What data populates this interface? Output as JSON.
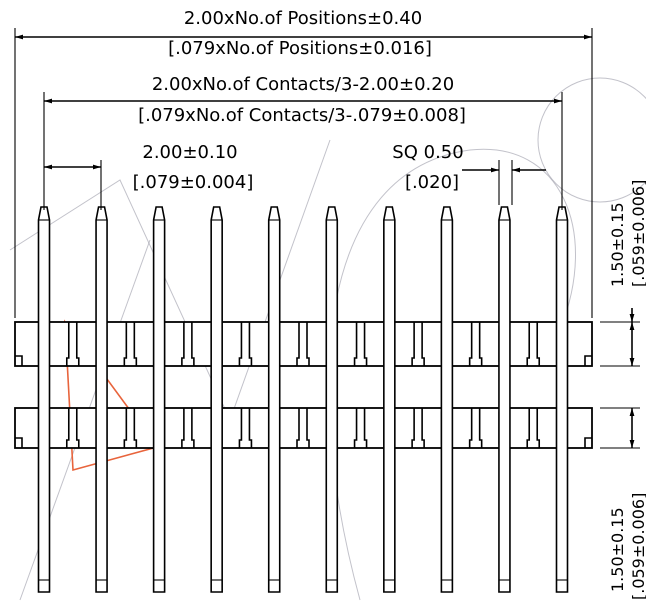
{
  "drawing": {
    "pin_count": 10,
    "dimensions": {
      "overall_mm": "2.00xNo.of Positions±0.40",
      "overall_in": "[.079xNo.of Positions±0.016]",
      "contacts_mm": "2.00xNo.of Contacts/3-2.00±0.20",
      "contacts_in": "[.079xNo.of Contacts/3-.079±0.008]",
      "pitch_mm": "2.00±0.10",
      "pitch_in": "[.079±0.004]",
      "pin_sq_mm": "SQ 0.50",
      "pin_sq_in": "[.020]",
      "top_length_mm": "1.50±0.15",
      "top_length_in": "[.059±0.006]",
      "bottom_length_mm": "1.50±0.15",
      "bottom_length_in": "[.059±0.006]"
    },
    "colors": {
      "line": "#000000",
      "watermark": "#9a9aa6",
      "logo": "#e8643c"
    }
  }
}
